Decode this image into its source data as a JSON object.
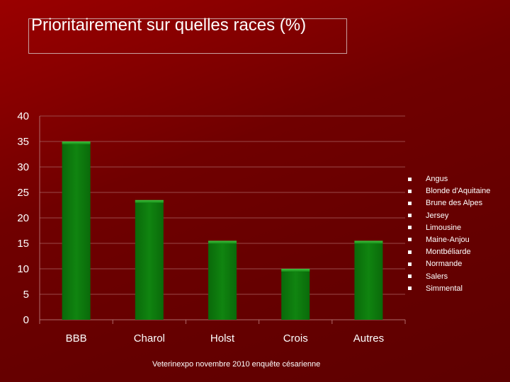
{
  "slide": {
    "title": "Prioritairement sur quelles races (%)",
    "footer": "Veterinexpo novembre 2010 enquête césarienne"
  },
  "chart_data": {
    "type": "bar",
    "title": "Prioritairement sur quelles races (%)",
    "categories": [
      "BBB",
      "Charol",
      "Holst",
      "Crois",
      "Autres"
    ],
    "values": [
      35,
      23.5,
      15.5,
      10,
      15.5
    ],
    "ylim": [
      0,
      40
    ],
    "yticks": [
      0,
      5,
      10,
      15,
      20,
      25,
      30,
      35,
      40
    ],
    "grid": true,
    "bar_color": "#0c7a0c",
    "legend_position": "right",
    "legend": [
      "Angus",
      "Blonde d'Aquitaine",
      "Brune des Alpes",
      "Jersey",
      "Limousine",
      "Maine-Anjou",
      "Montbéliarde",
      "Normande",
      "Salers",
      "Simmental"
    ]
  }
}
